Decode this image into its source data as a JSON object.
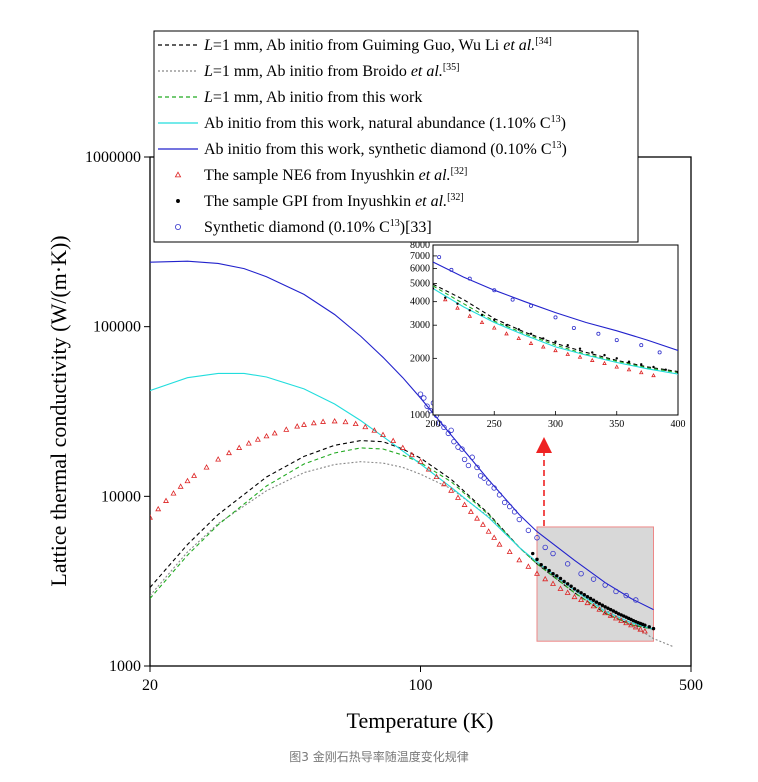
{
  "caption": "图3 金刚石热导率随温度变化规律",
  "colors": {
    "guo": "#000000",
    "broido": "#888888",
    "this_l1": "#22aa22",
    "natural": "#22dddd",
    "synthetic": "#2222cc",
    "ne6": "#dd2222",
    "gpi": "#000000",
    "synth_exp": "#3333cc",
    "zoom_fill": "#d8d8d8",
    "zoom_border": "#ee8888",
    "arrow": "#ee2222"
  },
  "chart_data": [
    {
      "type": "line",
      "xscale": "log",
      "yscale": "log",
      "xlabel": "Temperature (K)",
      "ylabel": "Lattice thermal conductivity (W/(m·K))",
      "xlim": [
        20,
        500
      ],
      "ylim": [
        1000,
        1000000
      ],
      "x_ticks": [
        20,
        100,
        500
      ],
      "y_ticks": [
        1000,
        10000,
        100000,
        1000000
      ],
      "legend_position": "top-left",
      "legend": [
        {
          "key": "guo",
          "prefix": "L",
          "text": "=1 mm, Ab initio from Guiming Guo, Wu Li ",
          "italic": "et al.",
          "sup": "[34]"
        },
        {
          "key": "broido",
          "prefix": "L",
          "text": "=1 mm, Ab initio from Broido ",
          "italic": "et al.",
          "sup": "[35]"
        },
        {
          "key": "this_l1",
          "prefix": "L",
          "text": "=1 mm, Ab initio from this work",
          "italic": "",
          "sup": ""
        },
        {
          "key": "natural",
          "prefix": "",
          "text": "Ab initio from this work, natural abundance (1.10% C",
          "italic": "",
          "sup": "13",
          "tail": ")"
        },
        {
          "key": "synthetic",
          "prefix": "",
          "text": "Ab initio from this work, synthetic diamond (0.10% C",
          "italic": "",
          "sup": "13",
          "tail": ")"
        },
        {
          "key": "ne6",
          "prefix": "",
          "text": "The sample NE6 from Inyushkin ",
          "italic": "et al.",
          "sup": "[32]"
        },
        {
          "key": "gpi",
          "prefix": "",
          "text": "The sample GPI from Inyushkin ",
          "italic": "et al.",
          "sup": "[32]"
        },
        {
          "key": "synth_exp",
          "prefix": "",
          "text": "Synthetic diamond (0.10% C",
          "italic": "",
          "sup": "13",
          "tail": ")[33]"
        }
      ],
      "series": [
        {
          "key": "guo",
          "style": "dash",
          "x": [
            20,
            25,
            30,
            40,
            50,
            60,
            70,
            80,
            90,
            100,
            120,
            150,
            180,
            200,
            250,
            300,
            350,
            400
          ],
          "y": [
            2900,
            5200,
            7800,
            13000,
            17200,
            20000,
            21300,
            21000,
            19000,
            16800,
            12600,
            7900,
            5000,
            4000,
            2700,
            2050,
            1750,
            1650
          ]
        },
        {
          "key": "broido",
          "style": "dot",
          "x": [
            20,
            25,
            30,
            40,
            50,
            60,
            70,
            80,
            90,
            100,
            120,
            150,
            180,
            200,
            250,
            300,
            350,
            400,
            450
          ],
          "y": [
            2600,
            4700,
            6900,
            10800,
            13800,
            15400,
            16000,
            15700,
            14800,
            13500,
            11100,
            7600,
            5000,
            4000,
            2800,
            2150,
            1750,
            1450,
            1300
          ]
        },
        {
          "key": "this_l1",
          "style": "dash",
          "x": [
            20,
            25,
            30,
            40,
            50,
            60,
            70,
            80,
            90,
            100,
            120,
            150,
            180,
            200,
            250,
            300,
            350,
            400
          ],
          "y": [
            2500,
            4500,
            6800,
            11500,
            15500,
            18000,
            19300,
            19000,
            17500,
            15800,
            12200,
            7800,
            5000,
            4000,
            2700,
            2050,
            1750,
            1650
          ]
        },
        {
          "key": "natural",
          "style": "solid",
          "x": [
            20,
            25,
            30,
            35,
            40,
            50,
            60,
            70,
            80,
            90,
            100,
            120,
            150,
            180,
            200,
            250,
            300,
            350,
            400
          ],
          "y": [
            42000,
            50000,
            53000,
            53000,
            50500,
            43000,
            35000,
            28000,
            22500,
            18500,
            15500,
            11300,
            7500,
            5000,
            4100,
            2800,
            2100,
            1800,
            1650
          ]
        },
        {
          "key": "synthetic",
          "style": "solid",
          "x": [
            20,
            25,
            30,
            35,
            40,
            50,
            60,
            70,
            80,
            90,
            100,
            120,
            150,
            180,
            200,
            250,
            300,
            350,
            400
          ],
          "y": [
            240000,
            243000,
            236000,
            220000,
            197000,
            155000,
            118000,
            88000,
            66000,
            50000,
            38000,
            23000,
            12500,
            7800,
            6200,
            4200,
            3100,
            2500,
            2150
          ]
        }
      ],
      "markers": [
        {
          "key": "ne6",
          "shape": "triangle",
          "x": [
            20,
            21,
            22,
            23,
            24,
            25,
            26,
            28,
            30,
            32,
            34,
            36,
            38,
            40,
            42,
            45,
            48,
            50,
            53,
            56,
            60,
            64,
            68,
            72,
            76,
            80,
            85,
            90,
            95,
            100,
            105,
            110,
            115,
            120,
            125,
            130,
            135,
            140,
            145,
            150,
            155,
            160,
            170,
            180,
            190,
            200,
            210,
            220,
            230,
            240,
            250,
            260,
            270,
            280,
            290,
            300,
            310,
            320,
            330,
            340,
            350,
            360,
            370,
            380
          ],
          "y": [
            7500,
            8400,
            9400,
            10400,
            11400,
            12300,
            13200,
            14800,
            16500,
            18000,
            19300,
            20500,
            21600,
            22600,
            23500,
            24700,
            25800,
            26400,
            27000,
            27500,
            27700,
            27400,
            26700,
            25600,
            24400,
            23000,
            21200,
            19300,
            17500,
            16000,
            14400,
            13000,
            11800,
            10800,
            9800,
            8900,
            8100,
            7400,
            6800,
            6200,
            5700,
            5200,
            4700,
            4200,
            3850,
            3500,
            3250,
            3050,
            2850,
            2700,
            2550,
            2450,
            2350,
            2250,
            2150,
            2050,
            1980,
            1910,
            1850,
            1790,
            1740,
            1690,
            1640,
            1600
          ]
        },
        {
          "key": "gpi",
          "shape": "dot",
          "x": [
            195,
            200,
            205,
            210,
            215,
            220,
            225,
            230,
            235,
            240,
            245,
            250,
            255,
            260,
            265,
            270,
            275,
            280,
            285,
            290,
            295,
            300,
            305,
            310,
            315,
            320,
            325,
            330,
            335,
            340,
            345,
            350,
            355,
            360,
            365,
            370,
            375,
            380,
            390,
            400
          ],
          "y": [
            4600,
            4250,
            3950,
            3800,
            3650,
            3500,
            3400,
            3280,
            3150,
            3050,
            2950,
            2850,
            2770,
            2700,
            2630,
            2560,
            2500,
            2440,
            2380,
            2330,
            2280,
            2230,
            2190,
            2150,
            2110,
            2070,
            2030,
            2000,
            1970,
            1940,
            1910,
            1880,
            1850,
            1825,
            1800,
            1780,
            1760,
            1740,
            1700,
            1660
          ]
        },
        {
          "key": "synth_exp",
          "shape": "circle",
          "x": [
            100,
            102,
            104,
            106,
            108,
            110,
            112,
            115,
            118,
            120,
            122,
            125,
            128,
            130,
            133,
            136,
            140,
            143,
            146,
            150,
            155,
            160,
            165,
            170,
            175,
            180,
            190,
            200,
            210,
            220,
            240,
            260,
            280,
            300,
            320,
            340,
            360
          ],
          "y": [
            40000,
            38000,
            34000,
            32000,
            35500,
            30000,
            27000,
            25500,
            23500,
            24500,
            21000,
            19500,
            19000,
            16500,
            15200,
            17000,
            14800,
            13200,
            12800,
            12000,
            11200,
            10200,
            9200,
            8700,
            8100,
            7300,
            6300,
            5700,
            5000,
            4600,
            4000,
            3500,
            3250,
            3000,
            2750,
            2600,
            2450
          ]
        }
      ]
    },
    {
      "type": "line",
      "inset": true,
      "xscale": "linear",
      "yscale": "log",
      "xlim": [
        200,
        400
      ],
      "ylim": [
        1000,
        8000
      ],
      "x_ticks": [
        200,
        250,
        300,
        350,
        400
      ],
      "y_ticks": [
        1000,
        2000,
        3000,
        4000,
        5000,
        6000,
        7000,
        8000
      ],
      "zoom_region": {
        "x": [
          200,
          400
        ],
        "y": [
          1400,
          6600
        ]
      },
      "series": [
        {
          "key": "guo",
          "style": "dash",
          "x": [
            200,
            225,
            250,
            275,
            300,
            325,
            350,
            375,
            400
          ],
          "y": [
            4950,
            4100,
            3250,
            2750,
            2400,
            2150,
            1950,
            1800,
            1700
          ]
        },
        {
          "key": "this_l1",
          "style": "dash",
          "x": [
            200,
            225,
            250,
            275,
            300,
            325,
            350,
            375,
            400
          ],
          "y": [
            4850,
            3900,
            3150,
            2700,
            2350,
            2100,
            1930,
            1780,
            1680
          ]
        },
        {
          "key": "natural",
          "style": "solid",
          "x": [
            200,
            225,
            250,
            275,
            300,
            325,
            350,
            375,
            400
          ],
          "y": [
            4700,
            3750,
            3100,
            2650,
            2300,
            2080,
            1900,
            1760,
            1650
          ]
        },
        {
          "key": "synthetic",
          "style": "solid",
          "x": [
            200,
            225,
            250,
            275,
            300,
            325,
            350,
            375,
            400
          ],
          "y": [
            6500,
            5400,
            4600,
            4000,
            3500,
            3100,
            2800,
            2500,
            2200
          ]
        }
      ],
      "markers": [
        {
          "key": "ne6",
          "shape": "triangle",
          "x": [
            210,
            220,
            230,
            240,
            250,
            260,
            270,
            280,
            290,
            300,
            310,
            320,
            330,
            340,
            350,
            360,
            370,
            380
          ],
          "y": [
            4100,
            3700,
            3350,
            3100,
            2900,
            2700,
            2550,
            2400,
            2300,
            2200,
            2100,
            2030,
            1950,
            1880,
            1800,
            1740,
            1680,
            1620
          ]
        },
        {
          "key": "gpi",
          "shape": "dot",
          "x": [
            200,
            210,
            220,
            230,
            240,
            250,
            260,
            270,
            280,
            290,
            300,
            310,
            320,
            330,
            340,
            350,
            360,
            370,
            380,
            390,
            400
          ],
          "y": [
            4700,
            4200,
            3900,
            3600,
            3400,
            3200,
            3000,
            2850,
            2700,
            2550,
            2450,
            2350,
            2250,
            2150,
            2080,
            2000,
            1920,
            1860,
            1800,
            1740,
            1680
          ]
        },
        {
          "key": "synth_exp",
          "shape": "circle",
          "x": [
            205,
            215,
            230,
            250,
            265,
            280,
            300,
            315,
            335,
            350,
            370,
            385
          ],
          "y": [
            6900,
            5900,
            5300,
            4600,
            4100,
            3800,
            3300,
            2900,
            2700,
            2500,
            2350,
            2150
          ]
        }
      ]
    }
  ]
}
